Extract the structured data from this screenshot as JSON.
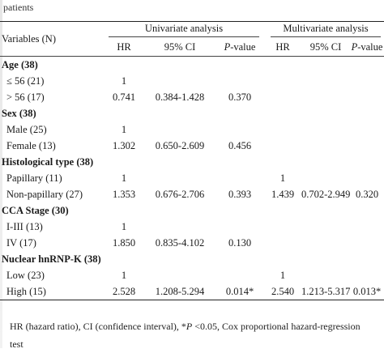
{
  "caption": "patients",
  "header": {
    "variables": "Variables (N)",
    "univariate": "Univariate analysis",
    "multivariate": "Multivariate analysis",
    "hr": "HR",
    "ci": "95% CI",
    "p_prefix": "P",
    "p_suffix": "-value"
  },
  "groups": [
    {
      "title": "Age (38)",
      "rows": [
        {
          "label": "≤ 56 (21)",
          "u_hr": "1",
          "u_ci": "",
          "u_p": "",
          "m_hr": "",
          "m_ci": "",
          "m_p": ""
        },
        {
          "label": "> 56 (17)",
          "u_hr": "0.741",
          "u_ci": "0.384-1.428",
          "u_p": "0.370",
          "m_hr": "",
          "m_ci": "",
          "m_p": ""
        }
      ]
    },
    {
      "title": "Sex (38)",
      "rows": [
        {
          "label": "Male (25)",
          "u_hr": "1",
          "u_ci": "",
          "u_p": "",
          "m_hr": "",
          "m_ci": "",
          "m_p": ""
        },
        {
          "label": "Female (13)",
          "u_hr": "1.302",
          "u_ci": "0.650-2.609",
          "u_p": "0.456",
          "m_hr": "",
          "m_ci": "",
          "m_p": ""
        }
      ]
    },
    {
      "title": "Histological type (38)",
      "rows": [
        {
          "label": "Papillary (11)",
          "u_hr": "1",
          "u_ci": "",
          "u_p": "",
          "m_hr": "1",
          "m_ci": "",
          "m_p": ""
        },
        {
          "label": "Non-papillary (27)",
          "u_hr": "1.353",
          "u_ci": "0.676-2.706",
          "u_p": "0.393",
          "m_hr": "1.439",
          "m_ci": "0.702-2.949",
          "m_p": "0.320"
        }
      ]
    },
    {
      "title": "CCA Stage (30)",
      "rows": [
        {
          "label": "I-III (13)",
          "u_hr": "1",
          "u_ci": "",
          "u_p": "",
          "m_hr": "",
          "m_ci": "",
          "m_p": ""
        },
        {
          "label": "IV (17)",
          "u_hr": "1.850",
          "u_ci": "0.835-4.102",
          "u_p": "0.130",
          "m_hr": "",
          "m_ci": "",
          "m_p": ""
        }
      ]
    },
    {
      "title": "Nuclear hnRNP-K (38)",
      "rows": [
        {
          "label": "Low (23)",
          "u_hr": "1",
          "u_ci": "",
          "u_p": "",
          "m_hr": "1",
          "m_ci": "",
          "m_p": ""
        },
        {
          "label": "High (15)",
          "u_hr": "2.528",
          "u_ci": "1.208-5.294",
          "u_p": "0.014*",
          "m_hr": "2.540",
          "m_ci": "1.213-5.317",
          "m_p": "0.013*"
        }
      ]
    }
  ],
  "footnote": {
    "line1_a": "HR (hazard ratio), CI (confidence interval), *",
    "line1_p": "P",
    "line1_b": " <0.05, Cox proportional hazard-regression",
    "line2": "test"
  }
}
